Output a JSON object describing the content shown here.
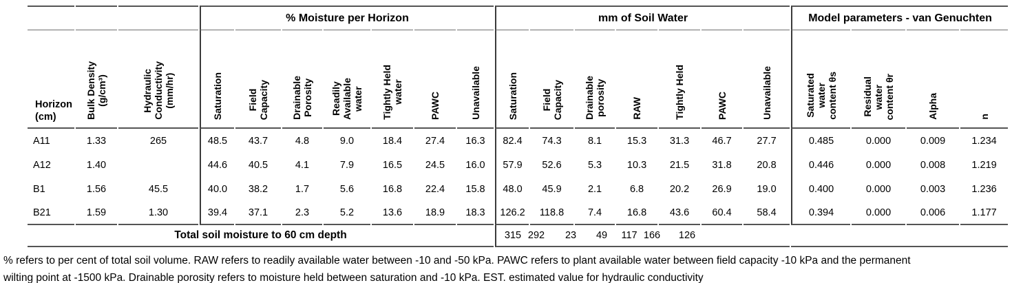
{
  "table": {
    "groups": [
      {
        "label": "",
        "span": 3
      },
      {
        "label": "% Moisture per Horizon",
        "span": 7
      },
      {
        "label": "mm of Soil Water",
        "span": 7
      },
      {
        "label": "Model parameters - van Genuchten",
        "span": 4
      }
    ],
    "columns": [
      {
        "label": "Horizon\n(cm)",
        "rotated": false
      },
      {
        "label": "Bulk Density\n(g/cm³)",
        "rotated": true
      },
      {
        "label": "Hydraulic\nConductivity\n(mm/hr)",
        "rotated": true
      },
      {
        "label": "Saturation",
        "rotated": true
      },
      {
        "label": "Field\nCapacity",
        "rotated": true
      },
      {
        "label": "Drainable\nPorosity",
        "rotated": true
      },
      {
        "label": "Readily\nAvailable\nwater",
        "rotated": true
      },
      {
        "label": "Tightly Held\nwater",
        "rotated": true
      },
      {
        "label": "PAWC",
        "rotated": true
      },
      {
        "label": "Unavailable",
        "rotated": true
      },
      {
        "label": "Saturation",
        "rotated": true
      },
      {
        "label": "Field\nCapacity",
        "rotated": true
      },
      {
        "label": "Drainable\nporosity",
        "rotated": true
      },
      {
        "label": "RAW",
        "rotated": true
      },
      {
        "label": "Tightly Held",
        "rotated": true
      },
      {
        "label": "PAWC",
        "rotated": true
      },
      {
        "label": "Unavailable",
        "rotated": true
      },
      {
        "label": "Saturated\nwater\ncontent θs",
        "rotated": true
      },
      {
        "label": "Residual\nwater\ncontent θr",
        "rotated": true
      },
      {
        "label": "Alpha",
        "rotated": true
      },
      {
        "label": "n",
        "rotated": true
      }
    ],
    "rows": [
      [
        "A11",
        "1.33",
        "265",
        "48.5",
        "43.7",
        "4.8",
        "9.0",
        "18.4",
        "27.4",
        "16.3",
        "82.4",
        "74.3",
        "8.1",
        "15.3",
        "31.3",
        "46.7",
        "27.7",
        "0.485",
        "0.000",
        "0.009",
        "1.234"
      ],
      [
        "A12",
        "1.40",
        "",
        "44.6",
        "40.5",
        "4.1",
        "7.9",
        "16.5",
        "24.5",
        "16.0",
        "57.9",
        "52.6",
        "5.3",
        "10.3",
        "21.5",
        "31.8",
        "20.8",
        "0.446",
        "0.000",
        "0.008",
        "1.219"
      ],
      [
        "B1",
        "1.56",
        "45.5",
        "40.0",
        "38.2",
        "1.7",
        "5.6",
        "16.8",
        "22.4",
        "15.8",
        "48.0",
        "45.9",
        "2.1",
        "6.8",
        "20.2",
        "26.9",
        "19.0",
        "0.400",
        "0.000",
        "0.003",
        "1.236"
      ],
      [
        "B21",
        "1.59",
        "1.30",
        "39.4",
        "37.1",
        "2.3",
        "5.2",
        "13.6",
        "18.9",
        "18.3",
        "126.2",
        "118.8",
        "7.4",
        "16.8",
        "43.6",
        "60.4",
        "58.4",
        "0.394",
        "0.000",
        "0.006",
        "1.177"
      ]
    ],
    "total_row": {
      "label": "Total soil moisture to 60 cm depth",
      "values": [
        "315",
        "292",
        "23",
        "49",
        "117",
        "166",
        "126"
      ]
    }
  },
  "footnote": "% refers to per cent of total soil volume. RAW refers to readily available water between -10 and -50 kPa. PAWC refers to plant available water between field capacity -10 kPa and the permanent\nwilting point at -1500 kPa. Drainable porosity refers to moisture held between saturation and -10 kPa. EST. estimated value for hydraulic conductivity"
}
